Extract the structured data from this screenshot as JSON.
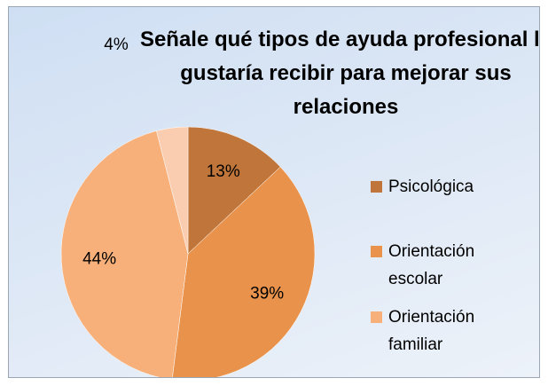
{
  "chart_data": {
    "type": "pie",
    "title": "Señale qué tipos de ayuda profesional le gustaría recibir para mejorar sus relaciones",
    "categories": [
      "Psicológica",
      "Orientación escolar",
      "Orientación familiar",
      null
    ],
    "values": [
      13,
      39,
      44,
      4
    ],
    "value_labels": [
      "13%",
      "39%",
      "44%",
      "4%"
    ],
    "colors": [
      "#c0763a",
      "#e8924b",
      "#f7b07a",
      "#fbcdb0"
    ]
  }
}
